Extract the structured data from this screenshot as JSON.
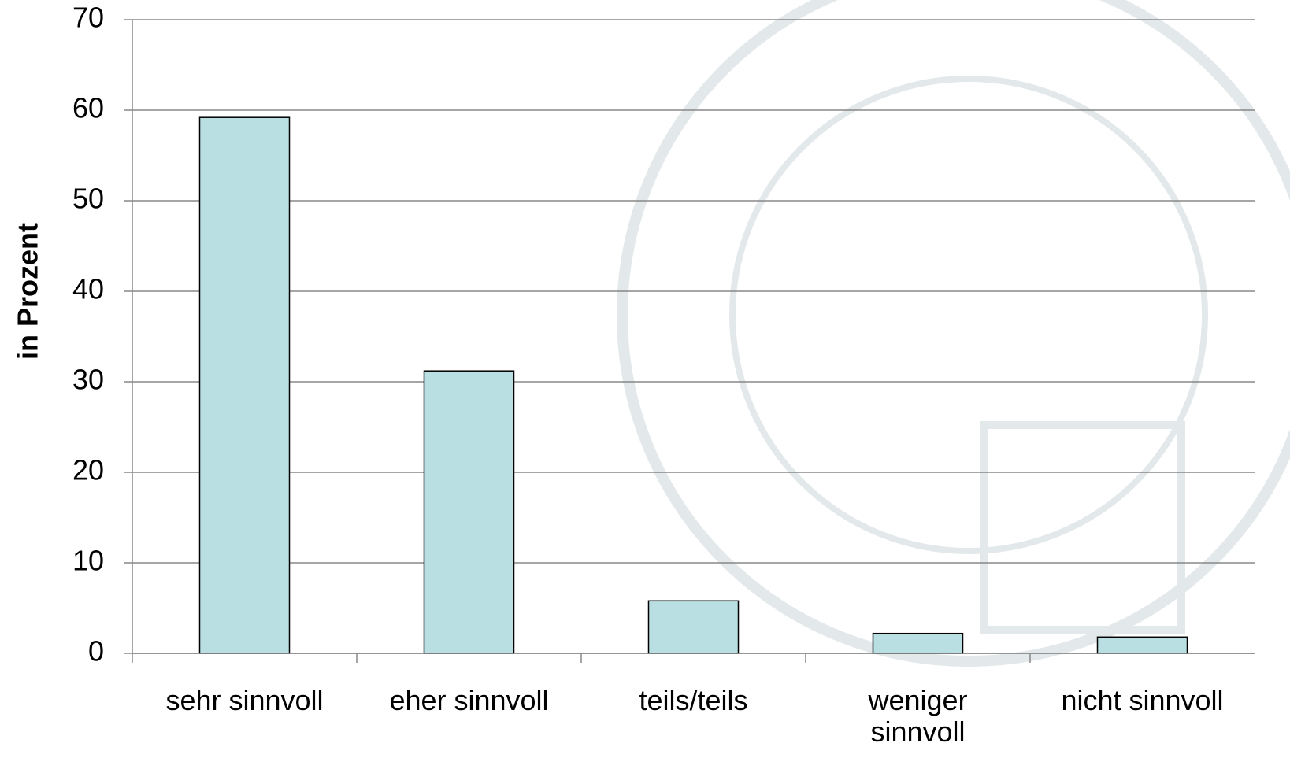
{
  "chart_data": {
    "type": "bar",
    "y_label": "in Prozent",
    "categories": [
      "sehr sinnvoll",
      "eher sinnvoll",
      "teils/teils",
      "weniger sinnvoll",
      "nicht sinnvoll"
    ],
    "values": [
      59.2,
      31.2,
      5.8,
      2.2,
      1.8
    ],
    "color": "#b9dfe2",
    "ylim": [
      0,
      70
    ],
    "yticks": [
      0,
      10,
      20,
      30,
      40,
      50,
      60,
      70
    ],
    "grid": true
  }
}
